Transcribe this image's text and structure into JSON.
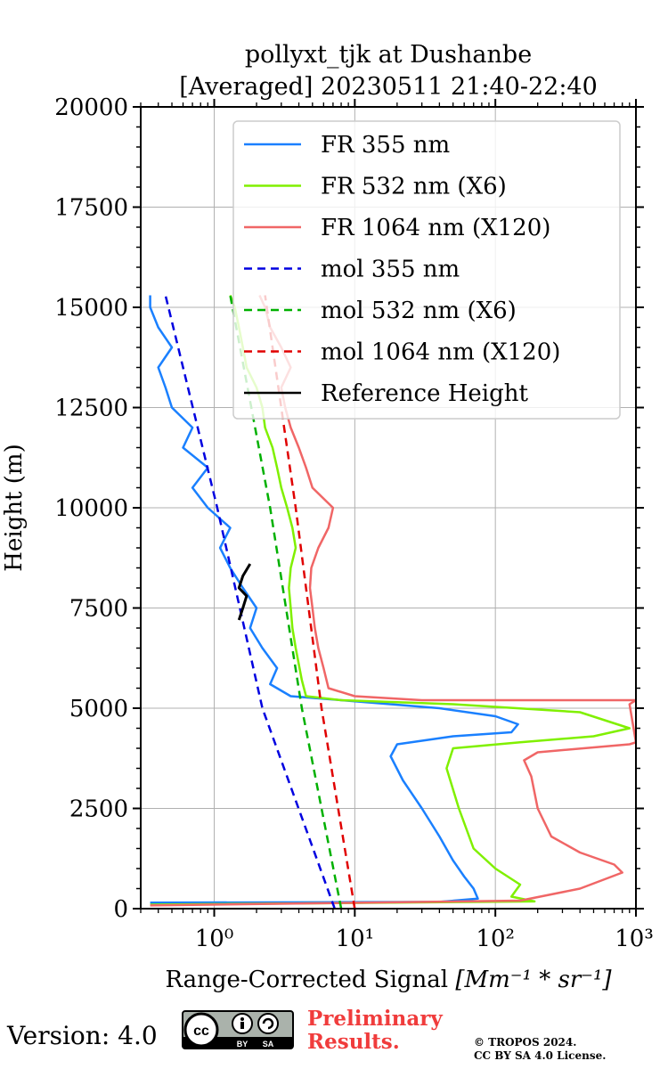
{
  "chart_data": {
    "type": "line",
    "title": [
      "pollyxt_tjk at Dushanbe",
      "[Averaged] 20230511 21:40-22:40"
    ],
    "xlabel": "Range-Corrected Signal",
    "xlabel_units": "[Mm⁻¹ * sr⁻¹]",
    "ylabel": "Height (m)",
    "xscale": "log",
    "xlim": [
      0.3,
      1000
    ],
    "ylim": [
      0,
      20000
    ],
    "x_tick_labels": [
      "10⁰",
      "10¹",
      "10²",
      "10³"
    ],
    "y_ticks": [
      0,
      2500,
      5000,
      7500,
      10000,
      12500,
      15000,
      17500,
      20000
    ],
    "grid": true,
    "legend_position": "top-right",
    "series": [
      {
        "name": "FR 355 nm",
        "color": "#1a80ff",
        "style": "solid",
        "points": [
          [
            0.35,
            150
          ],
          [
            40,
            170
          ],
          [
            75,
            250
          ],
          [
            70,
            500
          ],
          [
            60,
            800
          ],
          [
            50,
            1200
          ],
          [
            40,
            1800
          ],
          [
            30,
            2500
          ],
          [
            22,
            3200
          ],
          [
            18,
            3800
          ],
          [
            20,
            4100
          ],
          [
            50,
            4300
          ],
          [
            130,
            4400
          ],
          [
            145,
            4600
          ],
          [
            100,
            4800
          ],
          [
            40,
            5000
          ],
          [
            8,
            5200
          ],
          [
            3.5,
            5300
          ],
          [
            2.5,
            5600
          ],
          [
            2.8,
            6000
          ],
          [
            2.2,
            6500
          ],
          [
            1.8,
            7000
          ],
          [
            2.0,
            7500
          ],
          [
            1.6,
            8000
          ],
          [
            1.3,
            8500
          ],
          [
            1.1,
            9000
          ],
          [
            1.3,
            9500
          ],
          [
            0.9,
            10000
          ],
          [
            0.7,
            10500
          ],
          [
            0.9,
            11000
          ],
          [
            0.6,
            11500
          ],
          [
            0.7,
            12000
          ],
          [
            0.5,
            12500
          ],
          [
            0.45,
            13000
          ],
          [
            0.4,
            13500
          ],
          [
            0.5,
            14000
          ],
          [
            0.4,
            14500
          ],
          [
            0.35,
            15000
          ],
          [
            0.35,
            15300
          ]
        ]
      },
      {
        "name": "FR 532 nm (X6)",
        "color": "#80f000",
        "style": "solid",
        "points": [
          [
            0.35,
            100
          ],
          [
            190,
            180
          ],
          [
            130,
            300
          ],
          [
            150,
            600
          ],
          [
            100,
            1000
          ],
          [
            70,
            1500
          ],
          [
            55,
            2500
          ],
          [
            45,
            3500
          ],
          [
            50,
            4000
          ],
          [
            150,
            4150
          ],
          [
            500,
            4300
          ],
          [
            900,
            4500
          ],
          [
            400,
            4900
          ],
          [
            50,
            5100
          ],
          [
            8,
            5200
          ],
          [
            4.5,
            5300
          ],
          [
            4.2,
            5700
          ],
          [
            3.8,
            6500
          ],
          [
            3.6,
            7000
          ],
          [
            3.5,
            7500
          ],
          [
            3.4,
            8000
          ],
          [
            3.5,
            8500
          ],
          [
            3.8,
            9000
          ],
          [
            3.6,
            9500
          ],
          [
            3.3,
            10000
          ],
          [
            3.0,
            10500
          ],
          [
            2.8,
            11000
          ],
          [
            2.6,
            11500
          ],
          [
            2.3,
            12000
          ],
          [
            2.2,
            12500
          ],
          [
            2.0,
            13000
          ],
          [
            1.7,
            13500
          ],
          [
            1.6,
            14000
          ],
          [
            1.5,
            14500
          ],
          [
            1.4,
            15000
          ],
          [
            1.3,
            15300
          ]
        ]
      },
      {
        "name": "FR 1064 nm (X120)",
        "color": "#f06666",
        "style": "solid",
        "points": [
          [
            0.35,
            80
          ],
          [
            150,
            200
          ],
          [
            400,
            500
          ],
          [
            800,
            900
          ],
          [
            700,
            1100
          ],
          [
            400,
            1400
          ],
          [
            250,
            1800
          ],
          [
            200,
            2500
          ],
          [
            180,
            3300
          ],
          [
            160,
            3700
          ],
          [
            200,
            3900
          ],
          [
            900,
            4100
          ],
          [
            1000,
            4150
          ],
          [
            900,
            5100
          ],
          [
            1000,
            5200
          ],
          [
            30,
            5200
          ],
          [
            10,
            5300
          ],
          [
            6.5,
            5500
          ],
          [
            6.0,
            6000
          ],
          [
            5.5,
            6500
          ],
          [
            5.2,
            7000
          ],
          [
            5.0,
            7500
          ],
          [
            4.8,
            8000
          ],
          [
            4.9,
            8500
          ],
          [
            5.5,
            9000
          ],
          [
            6.5,
            9500
          ],
          [
            7.0,
            10000
          ],
          [
            5.0,
            10500
          ],
          [
            4.5,
            11000
          ],
          [
            4.0,
            11500
          ],
          [
            3.5,
            12000
          ],
          [
            3.2,
            12500
          ],
          [
            3.0,
            13000
          ],
          [
            3.5,
            13500
          ],
          [
            3.0,
            14000
          ],
          [
            2.5,
            14500
          ],
          [
            2.3,
            15000
          ],
          [
            2.1,
            15300
          ]
        ]
      },
      {
        "name": "mol 355 nm",
        "color": "#0000e0",
        "style": "dashed",
        "points": [
          [
            7.2,
            0
          ],
          [
            2.2,
            5000
          ],
          [
            1.05,
            10000
          ],
          [
            0.45,
            15300
          ]
        ]
      },
      {
        "name": "mol 532 nm (X6)",
        "color": "#00b000",
        "style": "dashed",
        "points": [
          [
            8.0,
            0
          ],
          [
            4.2,
            5000
          ],
          [
            2.5,
            10000
          ],
          [
            1.3,
            15300
          ]
        ]
      },
      {
        "name": "mol 1064 nm (X120)",
        "color": "#e00000",
        "style": "dashed",
        "points": [
          [
            10,
            0
          ],
          [
            5.8,
            5000
          ],
          [
            3.8,
            10000
          ],
          [
            2.3,
            15300
          ]
        ]
      },
      {
        "name": "Reference Height",
        "color": "#000000",
        "style": "solid",
        "points": [
          [
            1.5,
            7200
          ],
          [
            1.6,
            7500
          ],
          [
            1.7,
            7800
          ],
          [
            1.5,
            8000
          ],
          [
            1.6,
            8300
          ],
          [
            1.8,
            8600
          ]
        ]
      }
    ],
    "reference_range_m": [
      7200,
      8700
    ]
  },
  "footer": {
    "version_label": "Version: 4.0",
    "license_badge": "BY SA",
    "preliminary": [
      "Preliminary",
      "Results."
    ],
    "copyright": [
      "© TROPOS 2024.",
      "CC BY SA 4.0 License."
    ]
  }
}
